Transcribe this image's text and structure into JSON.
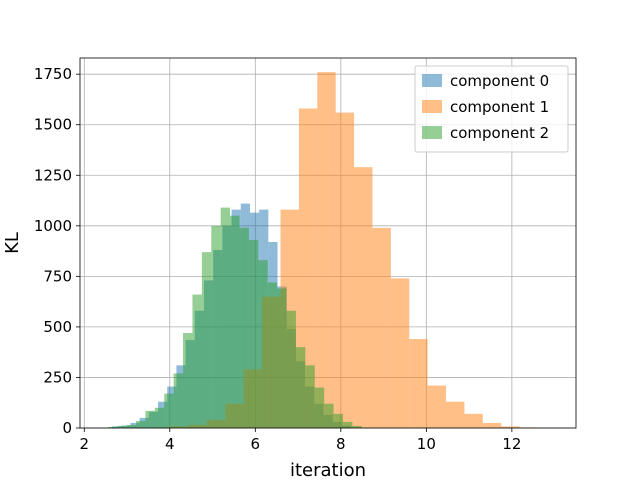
{
  "chart_data": {
    "type": "bar",
    "subtype": "overlapping-histogram",
    "title": "",
    "xlabel": "iteration",
    "ylabel": "KL",
    "xlim": [
      1.9,
      13.5
    ],
    "ylim": [
      0,
      1830
    ],
    "xticks": [
      2,
      4,
      6,
      8,
      10,
      12
    ],
    "yticks": [
      0,
      250,
      500,
      750,
      1000,
      1250,
      1500,
      1750
    ],
    "grid": true,
    "legend_position": "top-right",
    "bar_alpha": 0.5,
    "series": [
      {
        "name": "component 0",
        "color": "#1f77b4",
        "bin_width": 0.215,
        "bins": [
          {
            "x0": 2.65,
            "count": 8
          },
          {
            "x0": 2.865,
            "count": 12
          },
          {
            "x0": 3.08,
            "count": 25
          },
          {
            "x0": 3.295,
            "count": 50
          },
          {
            "x0": 3.51,
            "count": 80
          },
          {
            "x0": 3.725,
            "count": 130
          },
          {
            "x0": 3.94,
            "count": 205
          },
          {
            "x0": 4.155,
            "count": 310
          },
          {
            "x0": 4.37,
            "count": 435
          },
          {
            "x0": 4.585,
            "count": 580
          },
          {
            "x0": 4.8,
            "count": 730
          },
          {
            "x0": 5.015,
            "count": 880
          },
          {
            "x0": 5.23,
            "count": 1000
          },
          {
            "x0": 5.445,
            "count": 1080
          },
          {
            "x0": 5.66,
            "count": 1110
          },
          {
            "x0": 5.875,
            "count": 1065
          },
          {
            "x0": 6.09,
            "count": 1080
          },
          {
            "x0": 6.305,
            "count": 920
          },
          {
            "x0": 6.52,
            "count": 700
          },
          {
            "x0": 6.735,
            "count": 490
          },
          {
            "x0": 6.95,
            "count": 330
          },
          {
            "x0": 7.165,
            "count": 205
          },
          {
            "x0": 7.38,
            "count": 120
          },
          {
            "x0": 7.595,
            "count": 65
          },
          {
            "x0": 7.81,
            "count": 30
          },
          {
            "x0": 8.025,
            "count": 12
          }
        ]
      },
      {
        "name": "component 1",
        "color": "#ff7f0e",
        "bin_width": 0.43,
        "bins": [
          {
            "x0": 3.58,
            "count": 3
          },
          {
            "x0": 4.01,
            "count": 8
          },
          {
            "x0": 4.44,
            "count": 15
          },
          {
            "x0": 4.87,
            "count": 40
          },
          {
            "x0": 5.3,
            "count": 120
          },
          {
            "x0": 5.73,
            "count": 290
          },
          {
            "x0": 6.16,
            "count": 650
          },
          {
            "x0": 6.59,
            "count": 1080
          },
          {
            "x0": 7.02,
            "count": 1580
          },
          {
            "x0": 7.45,
            "count": 1760
          },
          {
            "x0": 7.88,
            "count": 1560
          },
          {
            "x0": 8.31,
            "count": 1290
          },
          {
            "x0": 8.74,
            "count": 990
          },
          {
            "x0": 9.17,
            "count": 740
          },
          {
            "x0": 9.6,
            "count": 440
          },
          {
            "x0": 10.03,
            "count": 210
          },
          {
            "x0": 10.46,
            "count": 130
          },
          {
            "x0": 10.89,
            "count": 70
          },
          {
            "x0": 11.32,
            "count": 25
          },
          {
            "x0": 11.75,
            "count": 8
          },
          {
            "x0": 12.18,
            "count": 3
          }
        ]
      },
      {
        "name": "component 2",
        "color": "#2ca02c",
        "bin_width": 0.22,
        "bins": [
          {
            "x0": 2.55,
            "count": 5
          },
          {
            "x0": 2.77,
            "count": 10
          },
          {
            "x0": 2.99,
            "count": 15
          },
          {
            "x0": 3.21,
            "count": 35
          },
          {
            "x0": 3.43,
            "count": 85
          },
          {
            "x0": 3.65,
            "count": 100
          },
          {
            "x0": 3.87,
            "count": 170
          },
          {
            "x0": 4.09,
            "count": 270
          },
          {
            "x0": 4.31,
            "count": 470
          },
          {
            "x0": 4.53,
            "count": 660
          },
          {
            "x0": 4.75,
            "count": 870
          },
          {
            "x0": 4.97,
            "count": 1000
          },
          {
            "x0": 5.19,
            "count": 1090
          },
          {
            "x0": 5.41,
            "count": 1050
          },
          {
            "x0": 5.63,
            "count": 990
          },
          {
            "x0": 5.85,
            "count": 930
          },
          {
            "x0": 6.07,
            "count": 830
          },
          {
            "x0": 6.29,
            "count": 720
          },
          {
            "x0": 6.51,
            "count": 690
          },
          {
            "x0": 6.73,
            "count": 580
          },
          {
            "x0": 6.95,
            "count": 400
          },
          {
            "x0": 7.17,
            "count": 310
          },
          {
            "x0": 7.39,
            "count": 200
          },
          {
            "x0": 7.61,
            "count": 120
          },
          {
            "x0": 7.83,
            "count": 70
          },
          {
            "x0": 8.05,
            "count": 30
          },
          {
            "x0": 8.27,
            "count": 10
          }
        ]
      }
    ]
  }
}
